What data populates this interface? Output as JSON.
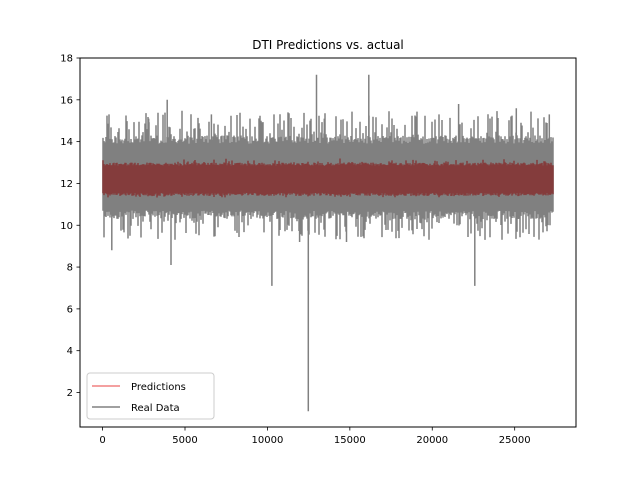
{
  "chart_data": {
    "type": "line",
    "title": "DTI Predictions vs. actual",
    "xlabel": "",
    "ylabel": "",
    "xlim": [
      -1370,
      28720
    ],
    "ylim": [
      0.35,
      18.0
    ],
    "x_ticks": [
      0,
      5000,
      10000,
      15000,
      20000,
      25000
    ],
    "y_ticks": [
      2,
      4,
      6,
      8,
      10,
      12,
      14,
      16,
      18
    ],
    "n_points": 27350,
    "legend_position": "lower-left",
    "grid": false,
    "series": [
      {
        "name": "Real Data",
        "color": "#808080",
        "typical_band": [
          10.3,
          14.3
        ],
        "noise_range": [
          9.3,
          15.5
        ],
        "extremes": [
          {
            "x": 390,
            "y": 15.3
          },
          {
            "x": 560,
            "y": 8.8
          },
          {
            "x": 1420,
            "y": 15.2
          },
          {
            "x": 2800,
            "y": 15.1
          },
          {
            "x": 3920,
            "y": 16.0
          },
          {
            "x": 4150,
            "y": 8.1
          },
          {
            "x": 6600,
            "y": 15.3
          },
          {
            "x": 10270,
            "y": 7.1
          },
          {
            "x": 10400,
            "y": 15.3
          },
          {
            "x": 11950,
            "y": 9.2
          },
          {
            "x": 12480,
            "y": 1.1
          },
          {
            "x": 12980,
            "y": 17.2
          },
          {
            "x": 13450,
            "y": 15.1
          },
          {
            "x": 14800,
            "y": 9.2
          },
          {
            "x": 16150,
            "y": 17.2
          },
          {
            "x": 19000,
            "y": 15.2
          },
          {
            "x": 21600,
            "y": 15.8
          },
          {
            "x": 22580,
            "y": 7.1
          },
          {
            "x": 23200,
            "y": 9.3
          },
          {
            "x": 25100,
            "y": 15.6
          },
          {
            "x": 27100,
            "y": 15.3
          }
        ]
      },
      {
        "name": "Predictions",
        "color": "#f08080",
        "overlay_color": "#843c3c",
        "typical_band": [
          11.4,
          13.0
        ],
        "noise_range": [
          11.3,
          13.2
        ]
      }
    ]
  }
}
